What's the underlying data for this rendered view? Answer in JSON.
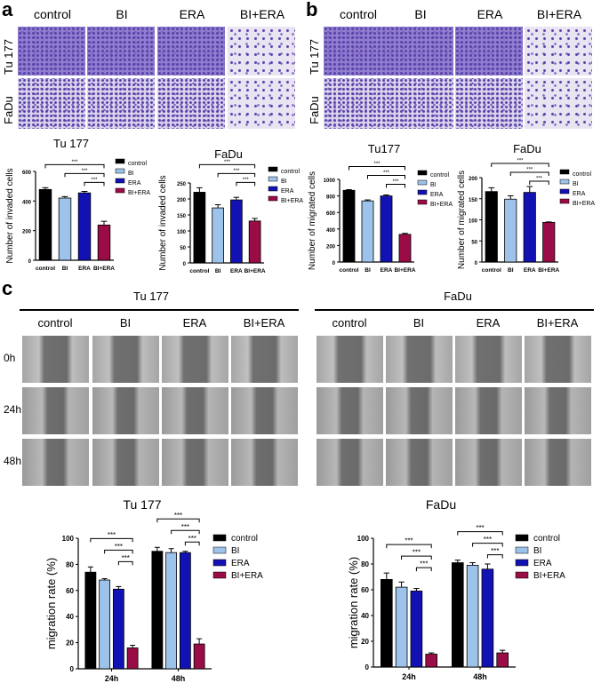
{
  "panels": {
    "a": "a",
    "b": "b",
    "c": "c"
  },
  "groups": [
    "control",
    "BI",
    "ERA",
    "BI+ERA"
  ],
  "cell_lines": [
    "Tu 177",
    "FaDu"
  ],
  "timepoints": [
    "0h",
    "24h",
    "48h"
  ],
  "colors": {
    "control": "#000000",
    "BI": "#9dc3ea",
    "ERA": "#1212b4",
    "BI+ERA": "#9a0c46"
  },
  "chart_data": [
    {
      "id": "a-tu177",
      "type": "bar",
      "title": "Tu 177",
      "ylabel": "Number of invaded cells",
      "categories": [
        "control",
        "BI",
        "ERA",
        "BI+ERA"
      ],
      "values": [
        478,
        420,
        455,
        238
      ],
      "errors": [
        12,
        10,
        10,
        25
      ],
      "ylim": [
        0,
        600
      ],
      "yticks": [
        0,
        200,
        400,
        600
      ],
      "legend": "right",
      "brackets": [
        {
          "from": 0,
          "to": 3,
          "label": "***"
        },
        {
          "from": 1,
          "to": 3,
          "label": "***"
        },
        {
          "from": 2,
          "to": 3,
          "label": "***"
        }
      ]
    },
    {
      "id": "a-fadu",
      "type": "bar",
      "title": "FaDu",
      "ylabel": "Number of invaded cells",
      "categories": [
        "control",
        "BI",
        "ERA",
        "BI+ERA"
      ],
      "values": [
        221,
        172,
        197,
        131
      ],
      "errors": [
        14,
        10,
        8,
        8
      ],
      "ylim": [
        0,
        250
      ],
      "yticks": [
        0,
        50,
        100,
        150,
        200,
        250
      ],
      "legend": "right",
      "brackets": [
        {
          "from": 0,
          "to": 3,
          "label": "***"
        },
        {
          "from": 1,
          "to": 3,
          "label": "***"
        },
        {
          "from": 2,
          "to": 3,
          "label": "***"
        }
      ]
    },
    {
      "id": "b-tu177",
      "type": "bar",
      "title": "Tu177",
      "ylabel": "Number of migrated cells",
      "categories": [
        "control",
        "BI",
        "ERA",
        "BI+ERA"
      ],
      "values": [
        868,
        740,
        800,
        335
      ],
      "errors": [
        8,
        12,
        12,
        12
      ],
      "ylim": [
        0,
        1000
      ],
      "yticks": [
        0,
        200,
        400,
        600,
        800,
        1000
      ],
      "legend": "right",
      "brackets": [
        {
          "from": 0,
          "to": 3,
          "label": "***"
        },
        {
          "from": 1,
          "to": 3,
          "label": "***"
        },
        {
          "from": 2,
          "to": 3,
          "label": "***"
        }
      ]
    },
    {
      "id": "b-fadu",
      "type": "bar",
      "title": "FaDu",
      "ylabel": "Number of migrated cells",
      "categories": [
        "control",
        "BI",
        "ERA",
        "BI+ERA"
      ],
      "values": [
        167,
        149,
        165,
        94
      ],
      "errors": [
        9,
        8,
        14,
        1
      ],
      "ylim": [
        0,
        200
      ],
      "yticks": [
        0,
        50,
        100,
        150,
        200
      ],
      "legend": "right",
      "brackets": [
        {
          "from": 0,
          "to": 3,
          "label": "***"
        },
        {
          "from": 1,
          "to": 3,
          "label": "***"
        },
        {
          "from": 2,
          "to": 3,
          "label": "***"
        }
      ]
    },
    {
      "id": "c-tu177",
      "type": "bar",
      "title": "Tu 177",
      "ylabel": "migration  rate  (%)",
      "categories": [
        "24h",
        "48h"
      ],
      "series": [
        {
          "name": "control",
          "values": [
            74,
            90
          ],
          "errors": [
            4,
            3
          ]
        },
        {
          "name": "BI",
          "values": [
            68,
            89
          ],
          "errors": [
            1,
            3
          ]
        },
        {
          "name": "ERA",
          "values": [
            61,
            89
          ],
          "errors": [
            2,
            1
          ]
        },
        {
          "name": "BI+ERA",
          "values": [
            16,
            19
          ],
          "errors": [
            2,
            4
          ]
        }
      ],
      "ylim": [
        0,
        100
      ],
      "yticks": [
        0,
        20,
        40,
        60,
        80,
        100
      ],
      "legend": "right",
      "brackets": [
        {
          "group": 0,
          "from": 0,
          "to": 3,
          "label": "***"
        },
        {
          "group": 0,
          "from": 1,
          "to": 3,
          "label": "***"
        },
        {
          "group": 0,
          "from": 2,
          "to": 3,
          "label": "***"
        },
        {
          "group": 1,
          "from": 0,
          "to": 3,
          "label": "***"
        },
        {
          "group": 1,
          "from": 1,
          "to": 3,
          "label": "***"
        },
        {
          "group": 1,
          "from": 2,
          "to": 3,
          "label": "***"
        }
      ]
    },
    {
      "id": "c-fadu",
      "type": "bar",
      "title": "FaDu",
      "ylabel": "migration  rate  (%)",
      "categories": [
        "24h",
        "48h"
      ],
      "series": [
        {
          "name": "control",
          "values": [
            68,
            81
          ],
          "errors": [
            5,
            2
          ]
        },
        {
          "name": "BI",
          "values": [
            62,
            79
          ],
          "errors": [
            4,
            2
          ]
        },
        {
          "name": "ERA",
          "values": [
            59,
            76
          ],
          "errors": [
            2,
            4
          ]
        },
        {
          "name": "BI+ERA",
          "values": [
            10,
            11
          ],
          "errors": [
            1,
            2
          ]
        }
      ],
      "ylim": [
        0,
        100
      ],
      "yticks": [
        0,
        20,
        40,
        60,
        80,
        100
      ],
      "legend": "right",
      "brackets": [
        {
          "group": 0,
          "from": 0,
          "to": 3,
          "label": "***"
        },
        {
          "group": 0,
          "from": 1,
          "to": 3,
          "label": "***"
        },
        {
          "group": 0,
          "from": 2,
          "to": 3,
          "label": "***"
        },
        {
          "group": 1,
          "from": 0,
          "to": 3,
          "label": "***"
        },
        {
          "group": 1,
          "from": 1,
          "to": 3,
          "label": "***"
        },
        {
          "group": 1,
          "from": 2,
          "to": 3,
          "label": "***"
        }
      ]
    }
  ]
}
